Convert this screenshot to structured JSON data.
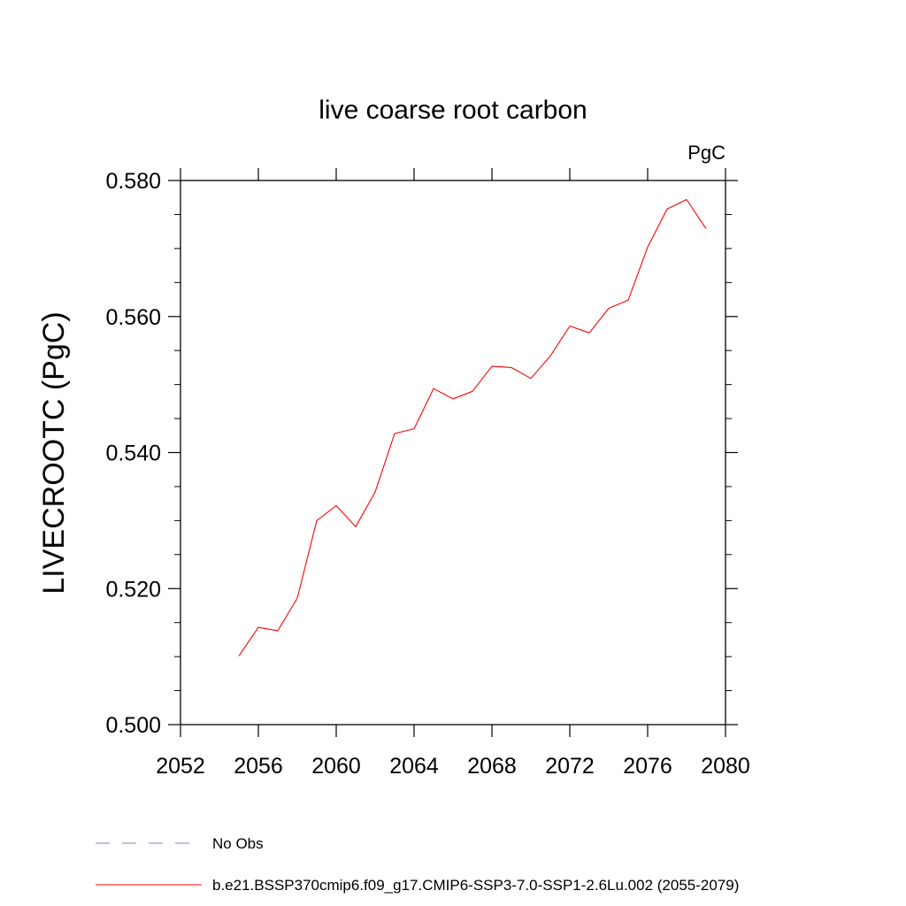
{
  "chart_data": {
    "type": "line",
    "title": "live coarse root carbon",
    "units": "PgC",
    "ylabel": "LIVECROOTC  (PgC)",
    "xlabel": "",
    "xlim": [
      2052,
      2080
    ],
    "ylim": [
      0.5,
      0.58
    ],
    "x_ticks": [
      2052,
      2056,
      2060,
      2064,
      2068,
      2072,
      2076,
      2080
    ],
    "y_ticks": [
      "0.500",
      "0.520",
      "0.540",
      "0.560",
      "0.580"
    ],
    "grid": false,
    "legend_position": "bottom",
    "series": [
      {
        "name": "b.e21.BSSP370cmip6.f09_g17.CMIP6-SSP3-7.0-SSP1-2.6Lu.002 (2055-2079)",
        "color": "#ff0000",
        "x": [
          2055,
          2056,
          2057,
          2058,
          2059,
          2060,
          2061,
          2062,
          2063,
          2064,
          2065,
          2066,
          2067,
          2068,
          2069,
          2070,
          2071,
          2072,
          2073,
          2074,
          2075,
          2076,
          2077,
          2078,
          2079
        ],
        "y": [
          0.5101,
          0.5143,
          0.5138,
          0.5186,
          0.53,
          0.5322,
          0.5291,
          0.5342,
          0.5428,
          0.5435,
          0.5494,
          0.5479,
          0.549,
          0.5527,
          0.5525,
          0.5509,
          0.5542,
          0.5586,
          0.5576,
          0.5612,
          0.5624,
          0.5702,
          0.5758,
          0.5772,
          0.5729
        ]
      }
    ],
    "legend": [
      {
        "label": "No Obs",
        "color": "#7f7fbf",
        "style": "dashed"
      },
      {
        "label": "b.e21.BSSP370cmip6.f09_g17.CMIP6-SSP3-7.0-SSP1-2.6Lu.002 (2055-2079)",
        "color": "#ff0000",
        "style": "solid"
      }
    ]
  }
}
